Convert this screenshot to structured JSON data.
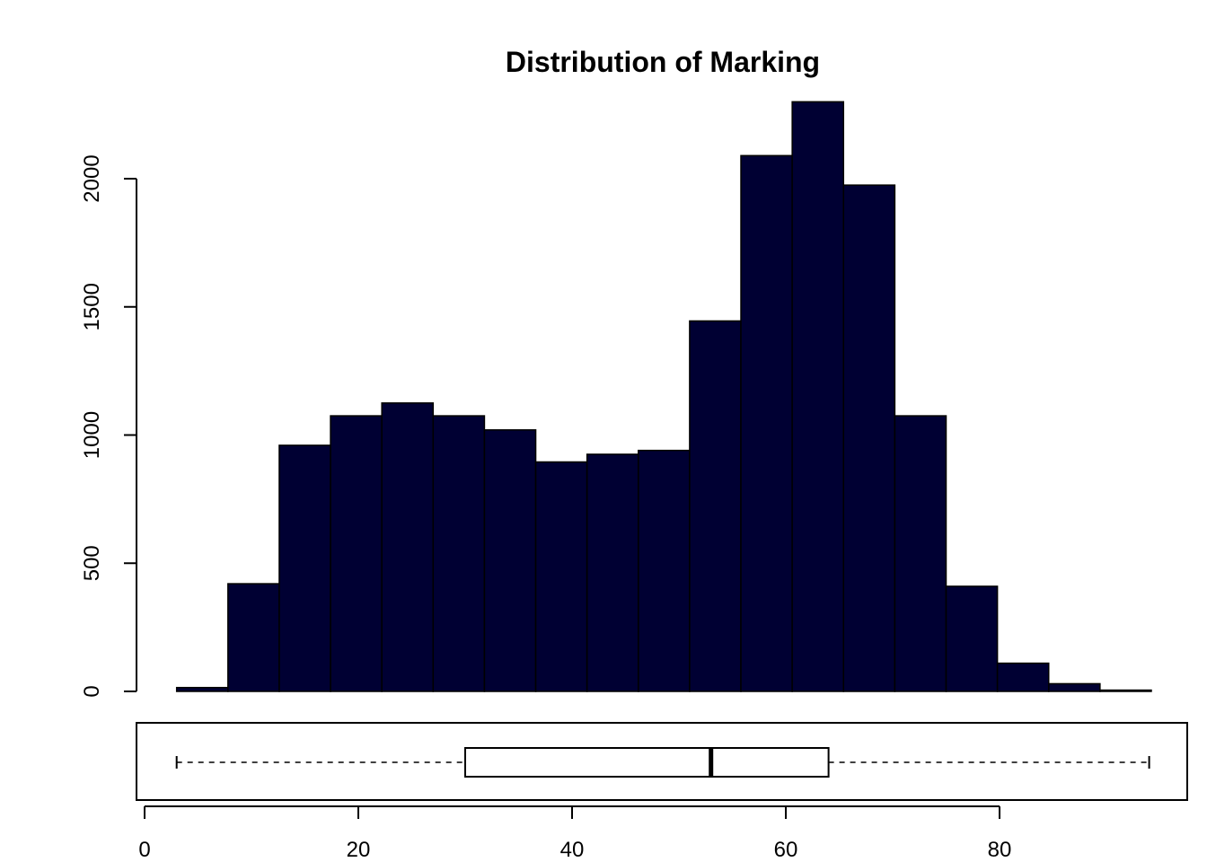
{
  "chart_data": {
    "type": "bar",
    "title": "Distribution of Marking",
    "xlabel": "",
    "ylabel": "",
    "bar_color": "#000033",
    "histogram": {
      "bin_edges": [
        3,
        7.8,
        12.6,
        17.4,
        22.2,
        27,
        31.8,
        36.6,
        41.4,
        46.2,
        51,
        55.8,
        60.6,
        65.4,
        70.2,
        75,
        79.8,
        84.6,
        89.4,
        94.2
      ],
      "counts": [
        15,
        420,
        960,
        1075,
        1125,
        1075,
        1020,
        895,
        925,
        940,
        1445,
        2090,
        2300,
        1975,
        1075,
        410,
        110,
        30,
        5
      ],
      "ylim": [
        0,
        2300
      ],
      "y_ticks": [
        "0",
        "500",
        "1000",
        "1500",
        "2000"
      ],
      "y_tick_values": [
        0,
        500,
        1000,
        1500,
        2000
      ]
    },
    "boxplot": {
      "min": 3,
      "q1": 30,
      "median": 53,
      "q3": 64,
      "max": 94
    },
    "x_axis": {
      "range": [
        3,
        94
      ],
      "ticks": [
        "0",
        "20",
        "40",
        "60",
        "80"
      ],
      "tick_values": [
        0,
        20,
        40,
        60,
        80
      ]
    }
  }
}
